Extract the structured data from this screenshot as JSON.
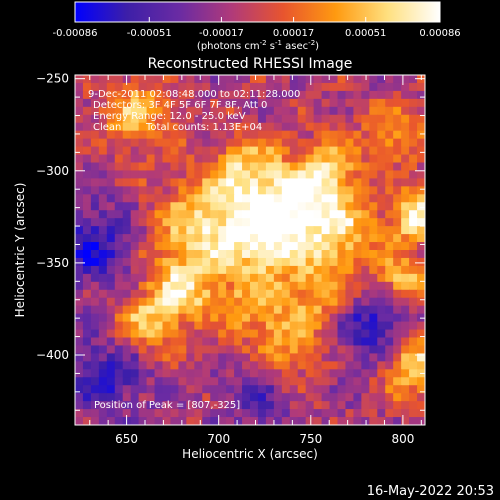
{
  "colorbar": {
    "ticks": [
      "-0.00086",
      "-0.00051",
      "-0.00017",
      "0.00017",
      "0.00051",
      "0.00086"
    ],
    "unit_pre": "(photons cm",
    "unit_exp1": "-2",
    "unit_mid1": " s",
    "unit_exp2": "-1",
    "unit_mid2": " asec",
    "unit_exp3": "-2",
    "unit_post": ")",
    "stops": [
      "#0000ff",
      "#3d1fa8",
      "#6a2ba3",
      "#b03a7a",
      "#e8552e",
      "#ff9a10",
      "#ffe080",
      "#ffffff"
    ]
  },
  "annotations": {
    "time_range": "9-Dec-2011 02:08:48.000 to 02:11:28.000",
    "detectors": "Detectors: 3F 4F 5F 6F 7F 8F, Att 0",
    "energy": "Energy Range: 12.0 - 25.0 keV",
    "clean": "Clean",
    "counts": "Total counts: 1.13E+04",
    "peak": "Position of Peak = [807,-325]"
  },
  "footer": {
    "timestamp": "16-May-2022 20:53"
  },
  "chart_data": {
    "type": "heatmap",
    "title": "Reconstructed RHESSI Image",
    "xlabel": "Heliocentric X (arcsec)",
    "ylabel": "Heliocentric Y (arcsec)",
    "xlim": [
      622,
      812
    ],
    "ylim": [
      -438,
      -248
    ],
    "xticks": [
      650,
      700,
      750,
      800
    ],
    "yticks": [
      -250,
      -300,
      -350,
      -400
    ],
    "value_range": [
      -0.00086,
      0.00086
    ],
    "peak_position": [
      807,
      -325
    ],
    "hotspots": [
      {
        "x": 655,
        "y": -270,
        "value": 0.0006,
        "radius": 14
      },
      {
        "x": 690,
        "y": -330,
        "value": 0.0007,
        "radius": 18
      },
      {
        "x": 715,
        "y": -300,
        "value": 0.00065,
        "radius": 14
      },
      {
        "x": 725,
        "y": -335,
        "value": 0.0008,
        "radius": 16
      },
      {
        "x": 745,
        "y": -320,
        "value": 0.00072,
        "radius": 16
      },
      {
        "x": 760,
        "y": -300,
        "value": 0.0006,
        "radius": 12
      },
      {
        "x": 770,
        "y": -335,
        "value": 0.00055,
        "radius": 14
      },
      {
        "x": 680,
        "y": -365,
        "value": 0.00068,
        "radius": 14
      },
      {
        "x": 660,
        "y": -385,
        "value": 0.0006,
        "radius": 12
      },
      {
        "x": 720,
        "y": -375,
        "value": 0.0005,
        "radius": 14
      },
      {
        "x": 755,
        "y": -365,
        "value": 0.00055,
        "radius": 12
      },
      {
        "x": 740,
        "y": -395,
        "value": 0.00045,
        "radius": 12
      },
      {
        "x": 807,
        "y": -325,
        "value": 0.00086,
        "radius": 10
      },
      {
        "x": 805,
        "y": -405,
        "value": 0.0008,
        "radius": 12
      },
      {
        "x": 800,
        "y": -360,
        "value": 0.00065,
        "radius": 10
      },
      {
        "x": 795,
        "y": -280,
        "value": 0.0005,
        "radius": 12
      },
      {
        "x": 630,
        "y": -340,
        "value": -0.0006,
        "radius": 16
      },
      {
        "x": 640,
        "y": -410,
        "value": -0.0005,
        "radius": 16
      },
      {
        "x": 785,
        "y": -385,
        "value": -0.0006,
        "radius": 14
      },
      {
        "x": 720,
        "y": -425,
        "value": -0.0003,
        "radius": 14
      }
    ]
  }
}
